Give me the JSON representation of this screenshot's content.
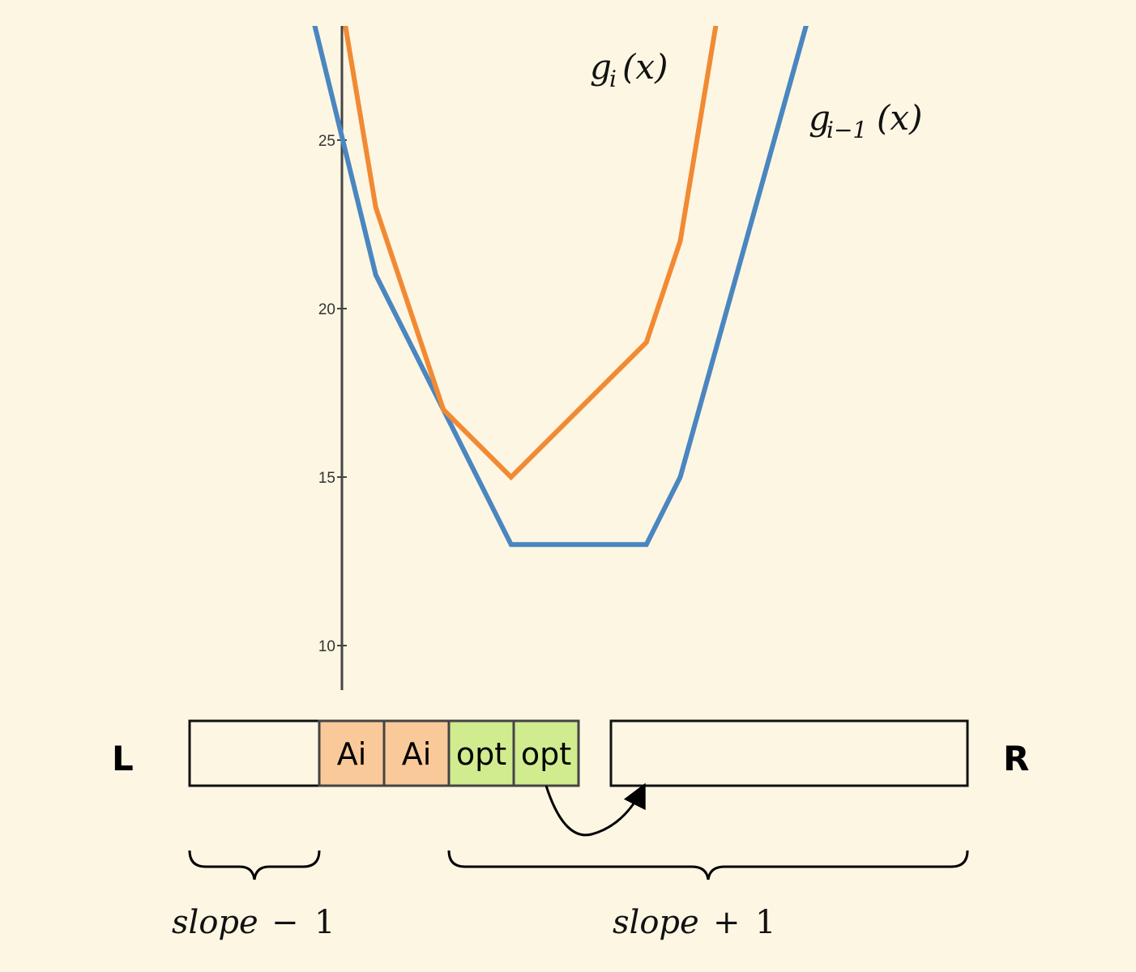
{
  "chart_data": {
    "type": "line",
    "y_ticks": [
      "10",
      "15",
      "20",
      "25"
    ],
    "series": [
      {
        "name": "g_{i-1}(x)",
        "label_main": "g",
        "label_sub": "i−1",
        "label_arg": "(x)",
        "color": "#4a86c0",
        "points": [
          [
            -1,
            29.2
          ],
          [
            1,
            21
          ],
          [
            3,
            17
          ],
          [
            5,
            13
          ],
          [
            9,
            13
          ],
          [
            10,
            15
          ],
          [
            14,
            29.4
          ]
        ]
      },
      {
        "name": "g_i(x)",
        "label_main": "g",
        "label_sub": "i",
        "label_arg": "(x)",
        "color": "#f18a33",
        "points": [
          [
            0,
            29
          ],
          [
            1,
            23
          ],
          [
            3,
            17
          ],
          [
            5,
            15
          ],
          [
            9,
            19
          ],
          [
            10,
            22
          ],
          [
            11.2,
            29.3
          ]
        ]
      }
    ]
  },
  "array": {
    "left_label": "L",
    "right_label": "R",
    "cells": [
      {
        "text": "",
        "fill": "#fdf6e3"
      },
      {
        "text": "Ai",
        "fill": "#fac99a"
      },
      {
        "text": "Ai",
        "fill": "#fac99a"
      },
      {
        "text": "opt",
        "fill": "#d1eb8f"
      },
      {
        "text": "opt",
        "fill": "#d1eb8f"
      }
    ],
    "right_box": {
      "text": ""
    }
  },
  "braces": {
    "left": {
      "word": "slope",
      "op": "−",
      "num": "1"
    },
    "right": {
      "word": "slope",
      "op": "+",
      "num": "1"
    }
  }
}
